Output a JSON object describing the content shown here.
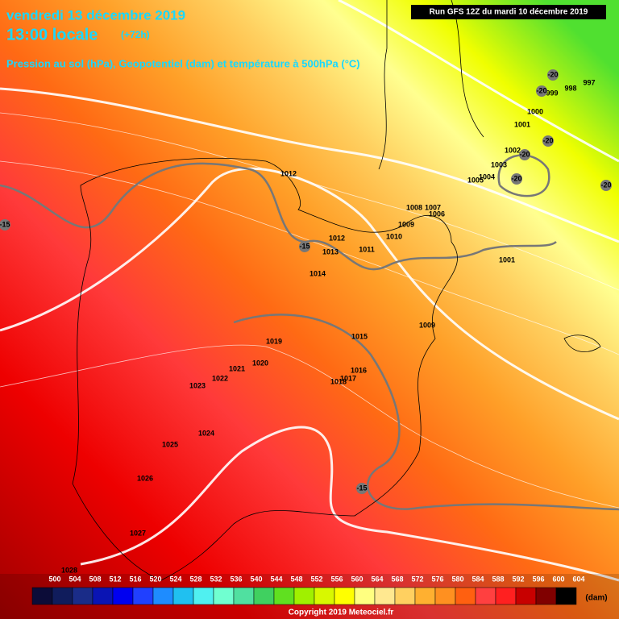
{
  "header": {
    "date": "vendredi 13 décembre 2019",
    "time": "13:00 locale",
    "lead": "(+72h)",
    "subtitle": "Pression au sol (hPa), Geopotentiel (dam) et température à 500hPa (°C)",
    "run": "Run GFS 12Z du mardi 10 décembre 2019"
  },
  "isobar_labels": [
    "1012",
    "1012",
    "1013",
    "1011",
    "1014",
    "1010",
    "1009",
    "1008",
    "1007",
    "1006",
    "1015",
    "1019",
    "1020",
    "1021",
    "1022",
    "1023",
    "1016",
    "1017",
    "1018",
    "1024",
    "1025",
    "1026",
    "1027",
    "1028",
    "1009",
    "1001",
    "1000",
    "1001",
    "1002",
    "1003",
    "1004",
    "1005",
    "998",
    "997",
    "999"
  ],
  "temperature_labels": [
    "-20",
    "-20",
    "-20",
    "-20",
    "-20",
    "-20",
    "-15",
    "-15",
    "-15"
  ],
  "legend": {
    "values": [
      500,
      504,
      508,
      512,
      516,
      520,
      524,
      528,
      532,
      536,
      540,
      544,
      548,
      552,
      556,
      560,
      564,
      568,
      572,
      576,
      580,
      584,
      588,
      592,
      596,
      600,
      604
    ],
    "colors": [
      "#0c0c38",
      "#101c5c",
      "#1a2c88",
      "#0a14b4",
      "#0000f0",
      "#2040ff",
      "#1e8cff",
      "#20c0f0",
      "#50f0f0",
      "#70ffd0",
      "#50e0a0",
      "#40d060",
      "#60e020",
      "#a0f000",
      "#d8f800",
      "#ffff00",
      "#ffff80",
      "#ffe890",
      "#ffd060",
      "#ffb030",
      "#ff9020",
      "#ff6010",
      "#ff4040",
      "#ff2020",
      "#c80000",
      "#800000",
      "#000000"
    ],
    "unit": "(dam)"
  },
  "footer": {
    "copyright": "Copyright 2019 Meteociel.fr"
  }
}
